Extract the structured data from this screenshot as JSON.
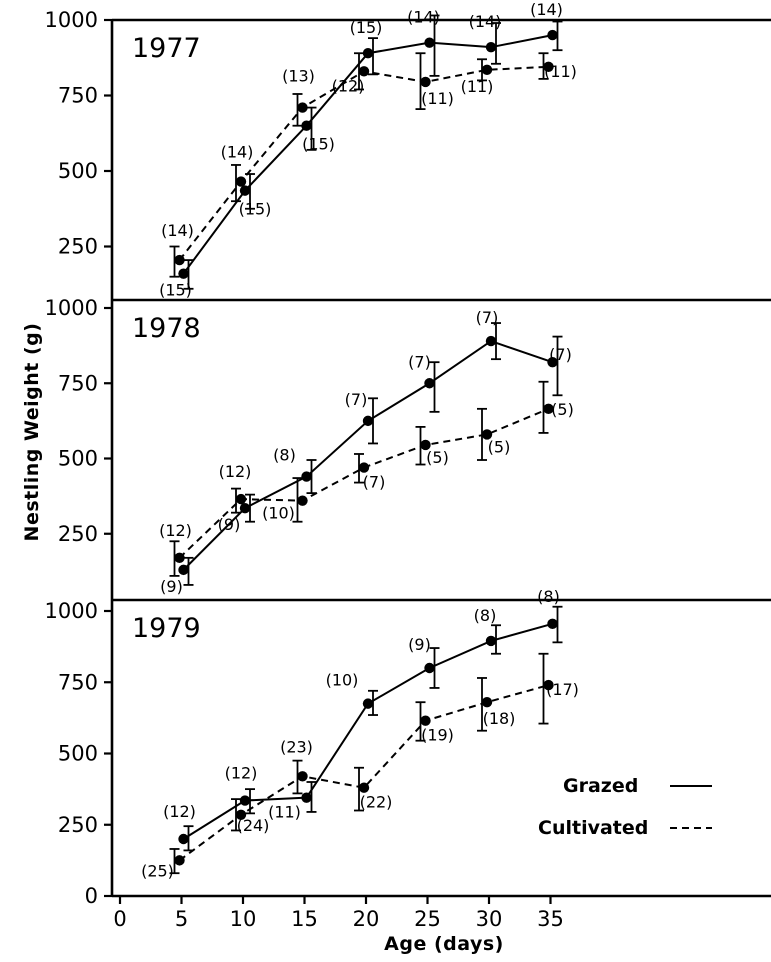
{
  "chart_data": {
    "type": "line",
    "ylabel": "Nestling Weight (g)",
    "xlabel": "Age (days)",
    "xlim": [
      0,
      40
    ],
    "xticks": [
      0,
      5,
      10,
      15,
      20,
      25,
      30,
      35
    ],
    "ylim": [
      0,
      1000
    ],
    "yticks": [
      250,
      500,
      750,
      1000
    ],
    "bottom_yticks": [
      0,
      250,
      500,
      750,
      1000
    ],
    "legend": {
      "placement": "bottom-right of 1979 panel",
      "entries": [
        {
          "label": "Grazed",
          "style": "solid"
        },
        {
          "label": "Cultivated",
          "style": "dashed"
        }
      ]
    },
    "panels": [
      {
        "label": "1977",
        "series": [
          {
            "name": "Grazed",
            "style": "solid",
            "points": [
              {
                "x": 5,
                "y": 160,
                "err": [
                  110,
                  205
                ],
                "n": "(15)"
              },
              {
                "x": 10,
                "y": 435,
                "err": [
                  375,
                  490
                ],
                "n": "(15)"
              },
              {
                "x": 15,
                "y": 650,
                "err": [
                  570,
                  710
                ],
                "n": "(15)"
              },
              {
                "x": 20,
                "y": 890,
                "err": [
                  820,
                  940
                ],
                "n": "(15)"
              },
              {
                "x": 25,
                "y": 925,
                "err": [
                  815,
                  1015
                ],
                "n": "(14)"
              },
              {
                "x": 30,
                "y": 910,
                "err": [
                  855,
                  990
                ],
                "n": "(14)"
              },
              {
                "x": 35,
                "y": 950,
                "err": [
                  900,
                  995
                ],
                "n": "(14)"
              }
            ]
          },
          {
            "name": "Cultivated",
            "style": "dashed",
            "points": [
              {
                "x": 5,
                "y": 205,
                "err": [
                  150,
                  250
                ],
                "n": "(14)"
              },
              {
                "x": 10,
                "y": 465,
                "err": [
                  400,
                  520
                ],
                "n": "(14)"
              },
              {
                "x": 15,
                "y": 710,
                "err": [
                  650,
                  755
                ],
                "n": "(13)"
              },
              {
                "x": 20,
                "y": 830,
                "err": [
                  770,
                  890
                ],
                "n": "(12)"
              },
              {
                "x": 25,
                "y": 795,
                "err": [
                  705,
                  890
                ],
                "n": "(11)"
              },
              {
                "x": 30,
                "y": 835,
                "err": [
                  800,
                  870
                ],
                "n": "(11)"
              },
              {
                "x": 35,
                "y": 845,
                "err": [
                  805,
                  890
                ],
                "n": "(11)"
              }
            ]
          }
        ]
      },
      {
        "label": "1978",
        "series": [
          {
            "name": "Grazed",
            "style": "solid",
            "points": [
              {
                "x": 5,
                "y": 130,
                "err": [
                  80,
                  170
                ],
                "n": "(9)"
              },
              {
                "x": 10,
                "y": 335,
                "err": [
                  290,
                  380
                ],
                "n": "(9)"
              },
              {
                "x": 15,
                "y": 440,
                "err": [
                  385,
                  495
                ],
                "n": "(8)"
              },
              {
                "x": 20,
                "y": 625,
                "err": [
                  550,
                  700
                ],
                "n": "(7)"
              },
              {
                "x": 25,
                "y": 750,
                "err": [
                  655,
                  820
                ],
                "n": "(7)"
              },
              {
                "x": 30,
                "y": 890,
                "err": [
                  830,
                  950
                ],
                "n": "(7)"
              },
              {
                "x": 35,
                "y": 820,
                "err": [
                  710,
                  905
                ],
                "n": "(7)"
              }
            ]
          },
          {
            "name": "Cultivated",
            "style": "dashed",
            "points": [
              {
                "x": 5,
                "y": 170,
                "err": [
                  110,
                  225
                ],
                "n": "(12)"
              },
              {
                "x": 10,
                "y": 365,
                "err": [
                  320,
                  400
                ],
                "n": "(12)"
              },
              {
                "x": 15,
                "y": 360,
                "err": [
                  290,
                  435
                ],
                "n": "(10)"
              },
              {
                "x": 20,
                "y": 470,
                "err": [
                  420,
                  515
                ],
                "n": "(7)"
              },
              {
                "x": 25,
                "y": 545,
                "err": [
                  480,
                  605
                ],
                "n": "(5)"
              },
              {
                "x": 30,
                "y": 580,
                "err": [
                  495,
                  665
                ],
                "n": "(5)"
              },
              {
                "x": 35,
                "y": 665,
                "err": [
                  585,
                  755
                ],
                "n": "(5)"
              }
            ]
          }
        ]
      },
      {
        "label": "1979",
        "series": [
          {
            "name": "Grazed",
            "style": "solid",
            "points": [
              {
                "x": 5,
                "y": 200,
                "err": [
                  160,
                  245
                ],
                "n": "(12)"
              },
              {
                "x": 10,
                "y": 335,
                "err": [
                  290,
                  375
                ],
                "n": "(12)"
              },
              {
                "x": 15,
                "y": 345,
                "err": [
                  295,
                  400
                ],
                "n": "(11)"
              },
              {
                "x": 20,
                "y": 675,
                "err": [
                  635,
                  720
                ],
                "n": "(10)"
              },
              {
                "x": 25,
                "y": 800,
                "err": [
                  730,
                  870
                ],
                "n": "(9)"
              },
              {
                "x": 30,
                "y": 895,
                "err": [
                  850,
                  950
                ],
                "n": "(8)"
              },
              {
                "x": 35,
                "y": 955,
                "err": [
                  890,
                  1015
                ],
                "n": "(8)"
              }
            ]
          },
          {
            "name": "Cultivated",
            "style": "dashed",
            "points": [
              {
                "x": 5,
                "y": 125,
                "err": [
                  80,
                  165
                ],
                "n": "(25)"
              },
              {
                "x": 10,
                "y": 285,
                "err": [
                  230,
                  340
                ],
                "n": "(24)"
              },
              {
                "x": 15,
                "y": 420,
                "err": [
                  360,
                  475
                ],
                "n": "(23)"
              },
              {
                "x": 20,
                "y": 380,
                "err": [
                  300,
                  450
                ],
                "n": "(22)"
              },
              {
                "x": 25,
                "y": 615,
                "err": [
                  545,
                  680
                ],
                "n": "(19)"
              },
              {
                "x": 30,
                "y": 680,
                "err": [
                  580,
                  765
                ],
                "n": "(18)"
              },
              {
                "x": 35,
                "y": 740,
                "err": [
                  605,
                  850
                ],
                "n": "(17)"
              }
            ]
          }
        ]
      }
    ]
  }
}
